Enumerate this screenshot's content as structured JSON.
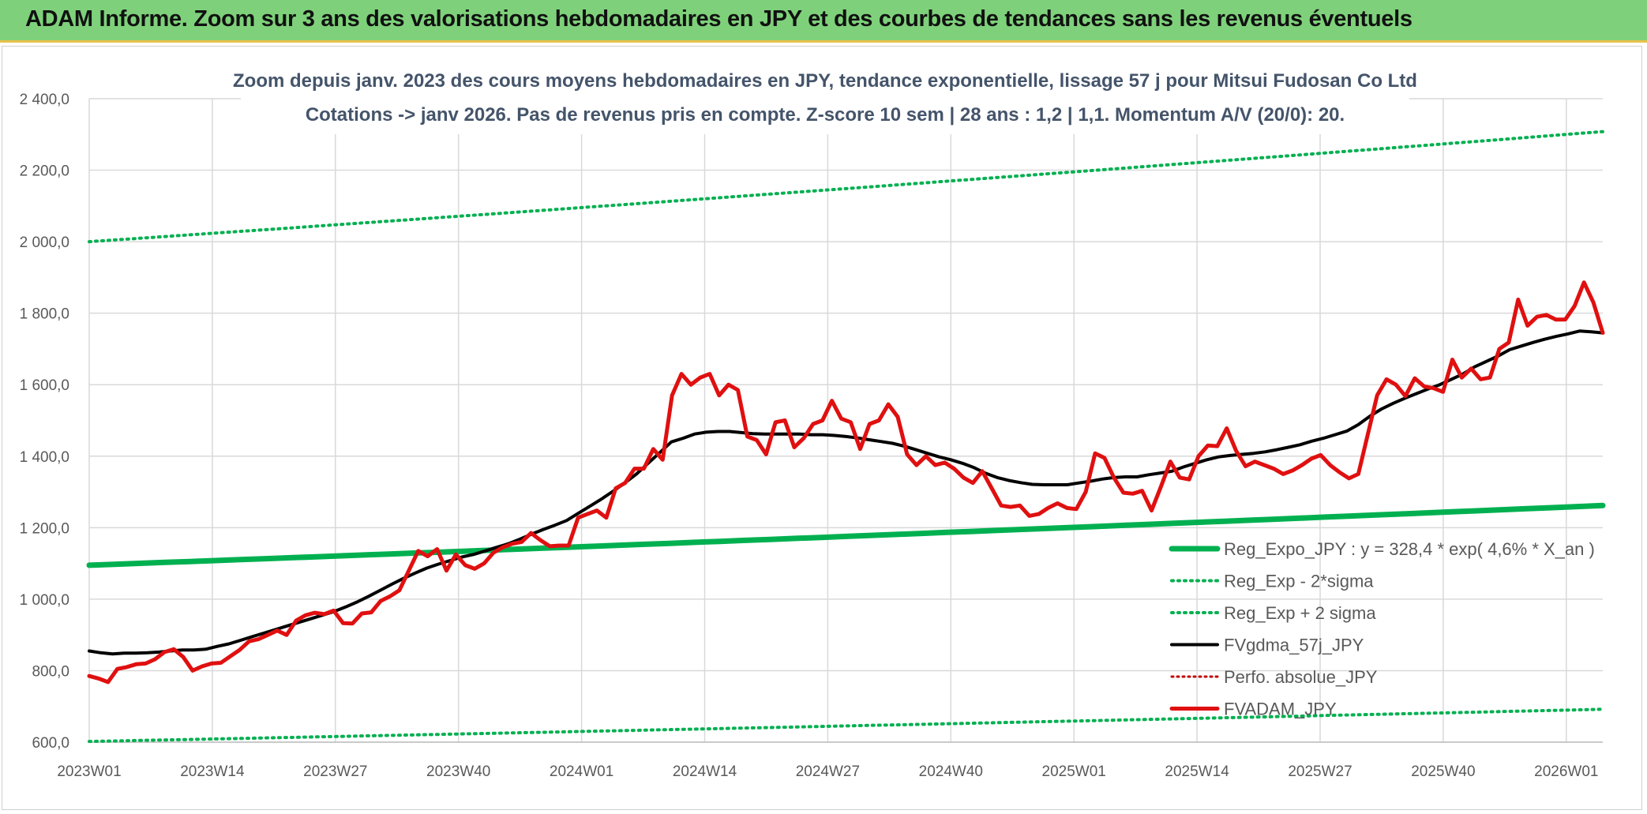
{
  "header": {
    "title": "ADAM Informe. Zoom sur 3 ans des valorisations hebdomadaires en JPY et des courbes de tendances sans les revenus éventuels"
  },
  "colors": {
    "header_bg": "#7ed17a",
    "regression": "#00b050",
    "sigma": "#00b050",
    "fvgdma": "#000000",
    "perfo": "#c00000",
    "fvadam": "#e01010"
  },
  "chart_data": {
    "type": "line",
    "title": "Zoom depuis janv. 2023 des cours moyens hebdomadaires en JPY, tendance exponentielle, lissage 57 j pour Mitsui Fudosan Co Ltd",
    "subtitle": "Cotations -> janv 2026. Pas de revenus pris en compte. Z-score 10 sem | 28 ans : 1,2 | 1,1. Momentum A/V (20/0): 20.",
    "xlabel": "",
    "ylabel": "",
    "ylim": [
      600,
      2400
    ],
    "yticks": [
      "2 400,0",
      "2 200,0",
      "2 000,0",
      "1 800,0",
      "1 600,0",
      "1 400,0",
      "1 200,0",
      "1 000,0",
      "800,0",
      "600,0"
    ],
    "ytick_values": [
      2400,
      2200,
      2000,
      1800,
      1600,
      1400,
      1200,
      1000,
      800,
      600
    ],
    "xticks": [
      "2023W01",
      "2023W14",
      "2023W27",
      "2023W40",
      "2024W01",
      "2024W14",
      "2024W27",
      "2024W40",
      "2025W01",
      "2025W14",
      "2025W27",
      "2025W40",
      "2026W01"
    ],
    "grid": true,
    "legend_position": "bottom-right",
    "series": [
      {
        "name": "Reg_Expo_JPY : y = 328,4 * exp( 4,6% *  X_an )",
        "style": "solid-thick",
        "color": "#00b050",
        "start": 1095,
        "end": 1262
      },
      {
        "name": "Reg_Exp - 2*sigma",
        "style": "dotted",
        "color": "#00b050",
        "start": 602,
        "end": 692
      },
      {
        "name": "Reg_Exp + 2 sigma",
        "style": "dotted",
        "color": "#00b050",
        "start": 2000,
        "end": 2308
      },
      {
        "name": "FVgdma_57j_JPY",
        "style": "solid",
        "color": "#000000",
        "values": [
          855,
          850,
          847,
          849,
          849,
          850,
          852,
          855,
          858,
          858,
          860,
          868,
          875,
          885,
          895,
          905,
          915,
          925,
          935,
          945,
          955,
          965,
          978,
          992,
          1008,
          1025,
          1042,
          1058,
          1073,
          1087,
          1098,
          1108,
          1118,
          1125,
          1135,
          1145,
          1155,
          1168,
          1182,
          1195,
          1207,
          1220,
          1240,
          1260,
          1280,
          1302,
          1325,
          1350,
          1380,
          1410,
          1440,
          1450,
          1462,
          1467,
          1469,
          1469,
          1466,
          1463,
          1462,
          1462,
          1462,
          1462,
          1460,
          1460,
          1458,
          1455,
          1451,
          1446,
          1441,
          1436,
          1428,
          1418,
          1408,
          1398,
          1390,
          1380,
          1368,
          1352,
          1340,
          1332,
          1326,
          1321,
          1320,
          1320,
          1320,
          1325,
          1330,
          1336,
          1340,
          1342,
          1342,
          1348,
          1353,
          1358,
          1370,
          1380,
          1390,
          1398,
          1402,
          1405,
          1408,
          1412,
          1418,
          1425,
          1432,
          1442,
          1450,
          1460,
          1470,
          1488,
          1512,
          1532,
          1548,
          1562,
          1575,
          1588,
          1600,
          1615,
          1630,
          1650,
          1665,
          1680,
          1698,
          1708,
          1718,
          1727,
          1735,
          1742,
          1750,
          1748,
          1745
        ]
      },
      {
        "name": "Perfo. absolue_JPY",
        "style": "dotted",
        "color": "#c00000",
        "values": []
      },
      {
        "name": "FVADAM_JPY",
        "style": "solid-thick",
        "color": "#e01010",
        "values": [
          785,
          778,
          768,
          805,
          810,
          818,
          820,
          832,
          852,
          860,
          838,
          800,
          812,
          820,
          822,
          840,
          858,
          882,
          888,
          900,
          912,
          900,
          940,
          955,
          962,
          958,
          968,
          933,
          932,
          960,
          963,
          995,
          1008,
          1025,
          1080,
          1135,
          1120,
          1140,
          1080,
          1125,
          1095,
          1085,
          1100,
          1130,
          1145,
          1155,
          1160,
          1185,
          1165,
          1148,
          1150,
          1150,
          1228,
          1238,
          1248,
          1228,
          1310,
          1325,
          1365,
          1365,
          1420,
          1390,
          1570,
          1630,
          1600,
          1620,
          1630,
          1570,
          1600,
          1585,
          1455,
          1445,
          1405,
          1495,
          1500,
          1425,
          1450,
          1490,
          1500,
          1555,
          1505,
          1495,
          1420,
          1490,
          1500,
          1545,
          1510,
          1405,
          1375,
          1400,
          1375,
          1382,
          1365,
          1340,
          1325,
          1358,
          1310,
          1262,
          1258,
          1262,
          1233,
          1238,
          1255,
          1268,
          1255,
          1252,
          1300,
          1408,
          1395,
          1340,
          1298,
          1295,
          1303,
          1248,
          1315,
          1385,
          1340,
          1335,
          1400,
          1430,
          1428,
          1478,
          1415,
          1372,
          1385,
          1375,
          1365,
          1350,
          1360,
          1375,
          1393,
          1403,
          1375,
          1355,
          1338,
          1350,
          1460,
          1570,
          1615,
          1600,
          1568,
          1618,
          1595,
          1590,
          1580,
          1670,
          1620,
          1645,
          1615,
          1620,
          1700,
          1718,
          1838,
          1765,
          1790,
          1795,
          1782,
          1782,
          1820,
          1886,
          1830,
          1745
        ]
      }
    ]
  },
  "legend": {
    "items": [
      {
        "label": "Reg_Expo_JPY : y = 328,4 * exp( 4,6% *  X_an )"
      },
      {
        "label": "Reg_Exp - 2*sigma"
      },
      {
        "label": "Reg_Exp + 2 sigma"
      },
      {
        "label": "FVgdma_57j_JPY"
      },
      {
        "label": "Perfo. absolue_JPY"
      },
      {
        "label": "FVADAM_JPY"
      }
    ]
  }
}
